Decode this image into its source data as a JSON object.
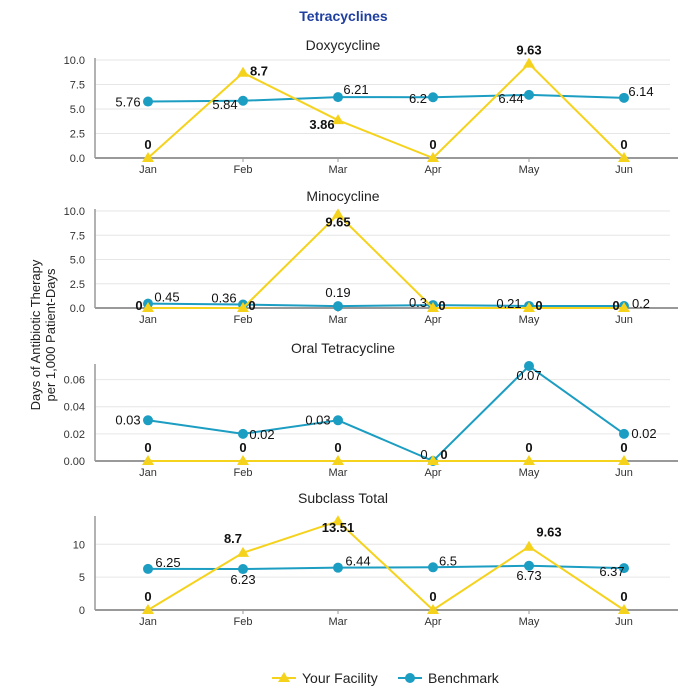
{
  "title": "Tetracyclines",
  "ylabel_line1": "Days of Antibiotic Therapy",
  "ylabel_line2": "per 1,000 Patient-Days",
  "legend": {
    "facility": "Your Facility",
    "benchmark": "Benchmark"
  },
  "colors": {
    "facility": "#f5d21c",
    "benchmark": "#1c9dc2",
    "axis": "#999999",
    "grid": "#e6e6e6",
    "title": "#1f3fa0"
  },
  "chart_data": [
    {
      "type": "line",
      "title": "Doxycycline",
      "categories": [
        "Jan",
        "Feb",
        "Mar",
        "Apr",
        "May",
        "Jun"
      ],
      "ylim": [
        0,
        10
      ],
      "yticks": [
        "0.0",
        "2.5",
        "5.0",
        "7.5",
        "10.0"
      ],
      "series": [
        {
          "name": "Your Facility",
          "values": [
            0,
            8.7,
            3.86,
            0,
            9.63,
            0
          ],
          "labels": [
            "0",
            "8.7",
            "3.86",
            "0",
            "9.63",
            "0"
          ]
        },
        {
          "name": "Benchmark",
          "values": [
            5.76,
            5.84,
            6.21,
            6.2,
            6.44,
            6.14
          ],
          "labels": [
            "5.76",
            "5.84",
            "6.21",
            "6.2",
            "6.44",
            "6.14"
          ]
        }
      ]
    },
    {
      "type": "line",
      "title": "Minocycline",
      "categories": [
        "Jan",
        "Feb",
        "Mar",
        "Apr",
        "May",
        "Jun"
      ],
      "ylim": [
        0,
        10
      ],
      "yticks": [
        "0.0",
        "2.5",
        "5.0",
        "7.5",
        "10.0"
      ],
      "series": [
        {
          "name": "Your Facility",
          "values": [
            0,
            0,
            9.65,
            0,
            0,
            0
          ],
          "labels": [
            "0",
            "0",
            "9.65",
            "0",
            "0",
            "0"
          ]
        },
        {
          "name": "Benchmark",
          "values": [
            0.45,
            0.36,
            0.19,
            0.3,
            0.21,
            0.2
          ],
          "labels": [
            "0.45",
            "0.36",
            "0.19",
            "0.3",
            "0.21",
            "0.2"
          ]
        }
      ]
    },
    {
      "type": "line",
      "title": "Oral Tetracycline",
      "categories": [
        "Jan",
        "Feb",
        "Mar",
        "Apr",
        "May",
        "Jun"
      ],
      "ylim": [
        0,
        0.07
      ],
      "yticks": [
        "0.00",
        "0.02",
        "0.04",
        "0.06"
      ],
      "series": [
        {
          "name": "Your Facility",
          "values": [
            0,
            0,
            0,
            0,
            0,
            0
          ],
          "labels": [
            "0",
            "0",
            "0",
            "0",
            "0",
            "0"
          ]
        },
        {
          "name": "Benchmark",
          "values": [
            0.03,
            0.02,
            0.03,
            0,
            0.07,
            0.02
          ],
          "labels": [
            "0.03",
            "0.02",
            "0.03",
            "0",
            "0.07",
            "0.02"
          ]
        }
      ]
    },
    {
      "type": "line",
      "title": "Subclass Total",
      "categories": [
        "Jan",
        "Feb",
        "Mar",
        "Apr",
        "May",
        "Jun"
      ],
      "ylim": [
        0,
        14
      ],
      "yticks": [
        "0",
        "5",
        "10"
      ],
      "series": [
        {
          "name": "Your Facility",
          "values": [
            0,
            8.7,
            13.51,
            0,
            9.63,
            0
          ],
          "labels": [
            "0",
            "8.7",
            "13.51",
            "0",
            "9.63",
            "0"
          ]
        },
        {
          "name": "Benchmark",
          "values": [
            6.25,
            6.23,
            6.44,
            6.5,
            6.73,
            6.37
          ],
          "labels": [
            "6.25",
            "6.23",
            "6.44",
            "6.5",
            "6.73",
            "6.37"
          ]
        }
      ]
    }
  ]
}
